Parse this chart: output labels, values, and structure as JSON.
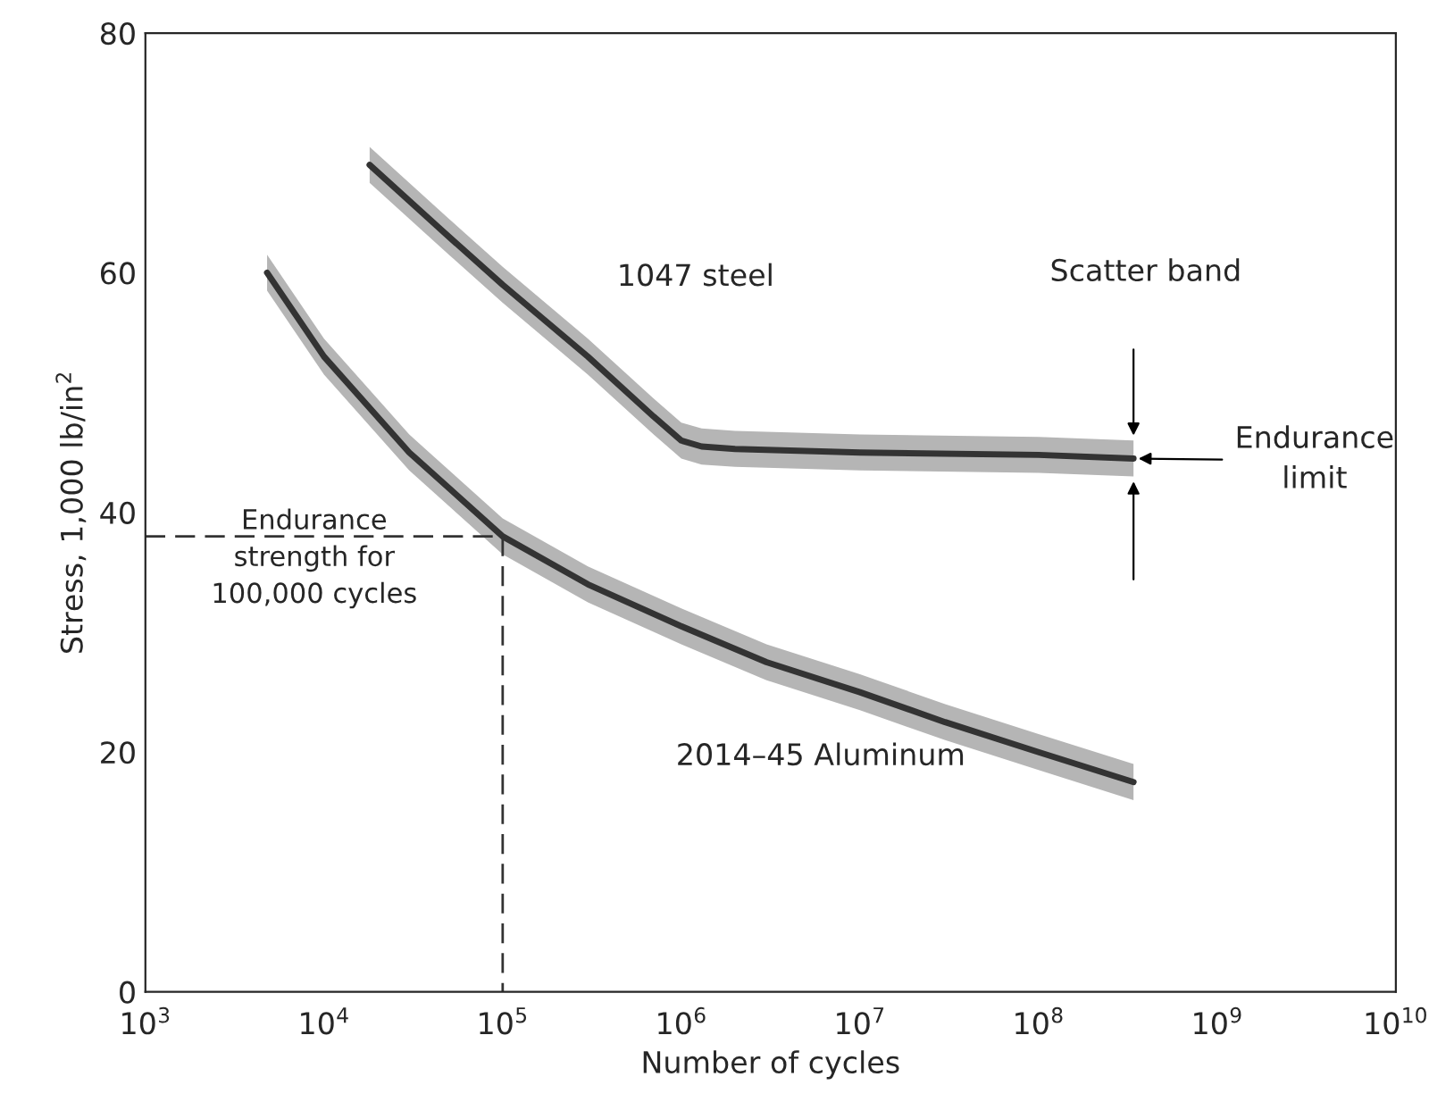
{
  "chart_data": {
    "type": "line",
    "xlabel": "Number of cycles",
    "ylabel": "Stress, 1,000 lb/in$^{2}$",
    "log": "x",
    "xlim": [
      1000,
      10000000000
    ],
    "ylim": [
      0,
      80
    ],
    "xticks": [
      {
        "value": 1000,
        "label": "10$^{3}$"
      },
      {
        "value": 10000,
        "label": "10$^{4}$"
      },
      {
        "value": 100000,
        "label": "10$^{5}$"
      },
      {
        "value": 1000000,
        "label": "10$^{6}$"
      },
      {
        "value": 10000000,
        "label": "10$^{7}$"
      },
      {
        "value": 100000000,
        "label": "10$^{8}$"
      },
      {
        "value": 1000000000,
        "label": "10$^{9}$"
      },
      {
        "value": 10000000000,
        "label": "10$^{10}$"
      }
    ],
    "yticks": [
      0,
      20,
      40,
      60,
      80
    ],
    "grid": false,
    "legend": false,
    "series": [
      {
        "color": "#333333",
        "x": [
          18000,
          50000,
          100000,
          300000,
          700000,
          1000000,
          1300000,
          2000000,
          10000000,
          100000000,
          340000000
        ],
        "values": [
          69,
          63,
          59,
          53,
          48,
          46,
          45.5,
          45.3,
          45,
          44.8,
          44.5
        ],
        "lower": [
          67.5,
          61.5,
          57.5,
          51.5,
          46.5,
          44.5,
          44,
          43.8,
          43.5,
          43.3,
          43
        ],
        "upper": [
          70.5,
          64.5,
          60.5,
          54.5,
          49.5,
          47.5,
          47,
          46.8,
          46.5,
          46.3,
          46
        ]
      },
      {
        "color": "#333333",
        "x": [
          4800,
          10000,
          30000,
          100000,
          300000,
          1000000,
          3000000,
          10000000,
          30000000,
          100000000,
          340000000
        ],
        "values": [
          60,
          53,
          45,
          38,
          34,
          30.5,
          27.5,
          25,
          22.5,
          20,
          17.5
        ],
        "lower": [
          58.5,
          51.5,
          43.5,
          36.5,
          32.5,
          29,
          26,
          23.5,
          21,
          18.5,
          16
        ],
        "upper": [
          61.5,
          54.5,
          46.5,
          39.5,
          35.5,
          32,
          29,
          26.5,
          24,
          21.5,
          19
        ]
      },
      {
        "color": "#333333",
        "line_style": "dashed",
        "x": [
          1000,
          100000,
          100000
        ],
        "values": [
          38,
          38,
          0
        ]
      }
    ],
    "annotations": [
      "1047 steel",
      "2014–45 Aluminum",
      "Endurance\nstrength for\n100,000 cycles",
      "Scatter band",
      "Endurance\nlimit"
    ]
  }
}
